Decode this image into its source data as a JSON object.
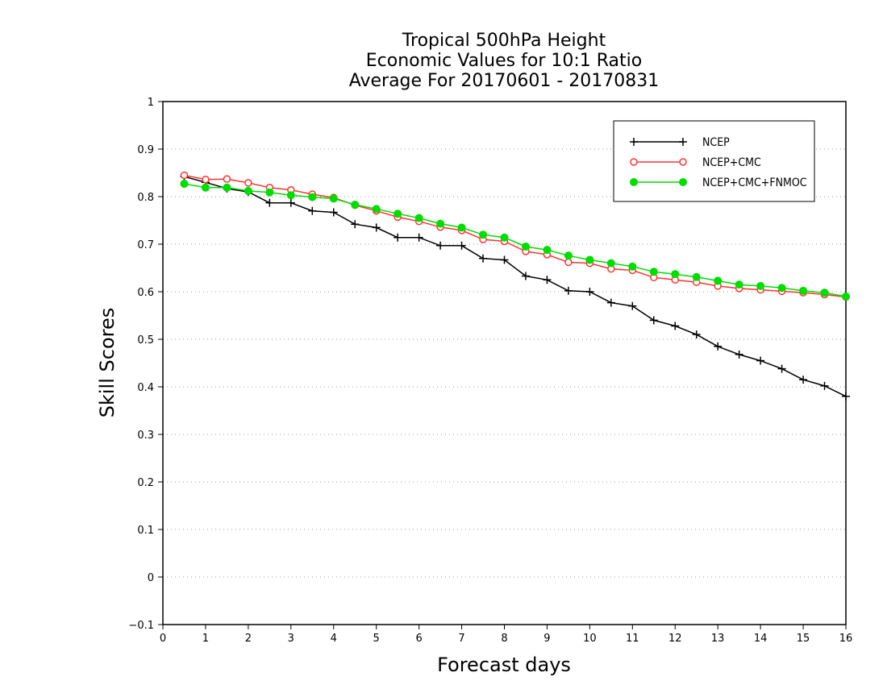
{
  "chart_data": {
    "type": "line",
    "title": [
      "Tropical 500hPa Height",
      "Economic Values for 10:1 Ratio",
      "Average For 20170601 - 20170831"
    ],
    "xlabel": "Forecast days",
    "ylabel": "Skill Scores",
    "xlim": [
      0,
      16
    ],
    "ylim": [
      -0.1,
      1
    ],
    "xticks": [
      "0",
      "1",
      "2",
      "3",
      "4",
      "5",
      "6",
      "7",
      "8",
      "9",
      "10",
      "11",
      "12",
      "13",
      "14",
      "15",
      "16"
    ],
    "yticks": [
      "-0.1",
      "0",
      "0.1",
      "0.2",
      "0.3",
      "0.4",
      "0.5",
      "0.6",
      "0.7",
      "0.8",
      "0.9",
      "1"
    ],
    "grid": "horizontal-dotted",
    "legend_position": "top-right",
    "x": [
      0.5,
      1,
      1.5,
      2,
      2.5,
      3,
      3.5,
      4,
      4.5,
      5,
      5.5,
      6,
      6.5,
      7,
      7.5,
      8,
      8.5,
      9,
      9.5,
      10,
      10.5,
      11,
      11.5,
      12,
      12.5,
      13,
      13.5,
      14,
      14.5,
      15,
      15.5,
      16
    ],
    "series": [
      {
        "name": "NCEP",
        "color": "#000000",
        "marker": "plus",
        "values": [
          0.842,
          0.83,
          0.817,
          0.81,
          0.787,
          0.787,
          0.77,
          0.767,
          0.742,
          0.735,
          0.714,
          0.714,
          0.697,
          0.697,
          0.67,
          0.667,
          0.633,
          0.625,
          0.602,
          0.6,
          0.577,
          0.57,
          0.54,
          0.528,
          0.51,
          0.485,
          0.468,
          0.455,
          0.438,
          0.415,
          0.402,
          0.38
        ]
      },
      {
        "name": "NCEP+CMC",
        "color": "#ff3333",
        "marker": "open-circle",
        "values": [
          0.845,
          0.836,
          0.837,
          0.829,
          0.819,
          0.814,
          0.805,
          0.798,
          0.782,
          0.77,
          0.757,
          0.748,
          0.736,
          0.729,
          0.71,
          0.706,
          0.685,
          0.678,
          0.662,
          0.66,
          0.648,
          0.645,
          0.63,
          0.625,
          0.62,
          0.612,
          0.607,
          0.604,
          0.601,
          0.598,
          0.594,
          0.589
        ]
      },
      {
        "name": "NCEP+CMC+FNMOC",
        "color": "#00dd00",
        "marker": "filled-circle",
        "values": [
          0.827,
          0.819,
          0.819,
          0.812,
          0.809,
          0.803,
          0.799,
          0.796,
          0.783,
          0.774,
          0.764,
          0.755,
          0.743,
          0.735,
          0.72,
          0.714,
          0.695,
          0.688,
          0.676,
          0.667,
          0.66,
          0.653,
          0.642,
          0.637,
          0.631,
          0.623,
          0.615,
          0.612,
          0.608,
          0.602,
          0.598,
          0.59
        ]
      }
    ]
  }
}
